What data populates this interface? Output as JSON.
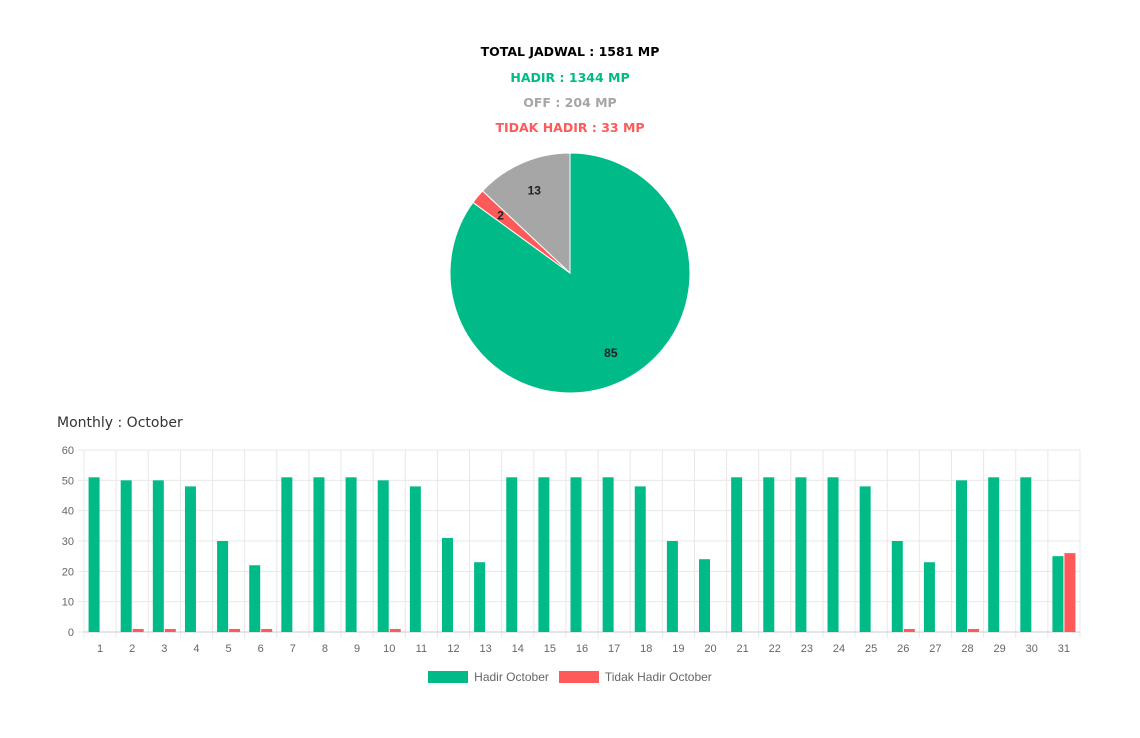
{
  "summary": {
    "total": "TOTAL JADWAL : 1581 MP",
    "hadir": "HADIR : 1344 MP",
    "off": "OFF : 204 MP",
    "tidak_hadir": "TIDAK HADIR : 33 MP"
  },
  "colors": {
    "hadir": "#00bb87",
    "off": "#a6a6a6",
    "tidak_hadir": "#ff5a5a",
    "total": "#000000",
    "grid": "#e8e8e8",
    "tick": "#666666"
  },
  "monthly_title": "Monthly : October",
  "chart_data": [
    {
      "type": "pie",
      "slices": [
        {
          "label": "HADIR",
          "value": 85,
          "display": "85",
          "color": "#00bb87"
        },
        {
          "label": "TIDAK HADIR",
          "value": 2,
          "display": "2",
          "color": "#ff5a5a"
        },
        {
          "label": "OFF",
          "value": 13,
          "display": "13",
          "color": "#a6a6a6"
        }
      ]
    },
    {
      "type": "bar",
      "categories": [
        "1",
        "2",
        "3",
        "4",
        "5",
        "6",
        "7",
        "8",
        "9",
        "10",
        "11",
        "12",
        "13",
        "14",
        "15",
        "16",
        "17",
        "18",
        "19",
        "20",
        "21",
        "22",
        "23",
        "24",
        "25",
        "26",
        "27",
        "28",
        "29",
        "30",
        "31"
      ],
      "series": [
        {
          "name": "Hadir October",
          "color": "#00bb87",
          "values": [
            51,
            50,
            50,
            48,
            30,
            22,
            51,
            51,
            51,
            50,
            48,
            31,
            23,
            51,
            51,
            51,
            51,
            48,
            30,
            24,
            51,
            51,
            51,
            51,
            48,
            30,
            23,
            50,
            51,
            51,
            25
          ]
        },
        {
          "name": "Tidak Hadir October",
          "color": "#ff5a5a",
          "values": [
            0,
            1,
            1,
            0,
            1,
            1,
            0,
            0,
            0,
            1,
            0,
            0,
            0,
            0,
            0,
            0,
            0,
            0,
            0,
            0,
            0,
            0,
            0,
            0,
            0,
            1,
            0,
            1,
            0,
            0,
            26
          ]
        }
      ],
      "ylim": [
        0,
        60
      ],
      "yticks": [
        0,
        10,
        20,
        30,
        40,
        50,
        60
      ],
      "grid": true,
      "legend": "bottom"
    }
  ]
}
